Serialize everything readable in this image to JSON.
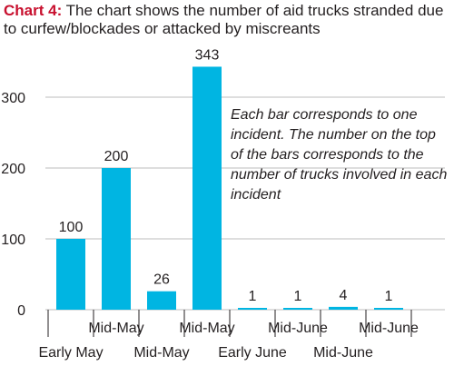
{
  "title": {
    "lead": "Chart 4:",
    "text": " The chart shows the number of aid trucks stranded due to curfew/blockades or attacked by miscreants"
  },
  "note": "Each bar corresponds to one incident. The number on the top of the bars corresponds to the number of trucks involved in each incident",
  "colors": {
    "bar": "#00b5e2",
    "title_lead": "#c8102e",
    "grid": "#bdbdbd",
    "axis": "#231f20"
  },
  "chart_data": {
    "type": "bar",
    "categories": [
      "Early May",
      "Mid-May",
      "Mid-May",
      "Mid-May",
      "Early June",
      "Mid-June",
      "Mid-June",
      "Mid-June"
    ],
    "values": [
      100,
      200,
      26,
      343,
      1,
      1,
      4,
      1
    ],
    "data_labels": [
      "100",
      "200",
      "26",
      "343",
      "1",
      "1",
      "4",
      "1"
    ],
    "ylim": [
      0,
      350
    ],
    "yticks": [
      0,
      100,
      200,
      300
    ],
    "grid": true,
    "xlabel": "",
    "ylabel": ""
  }
}
